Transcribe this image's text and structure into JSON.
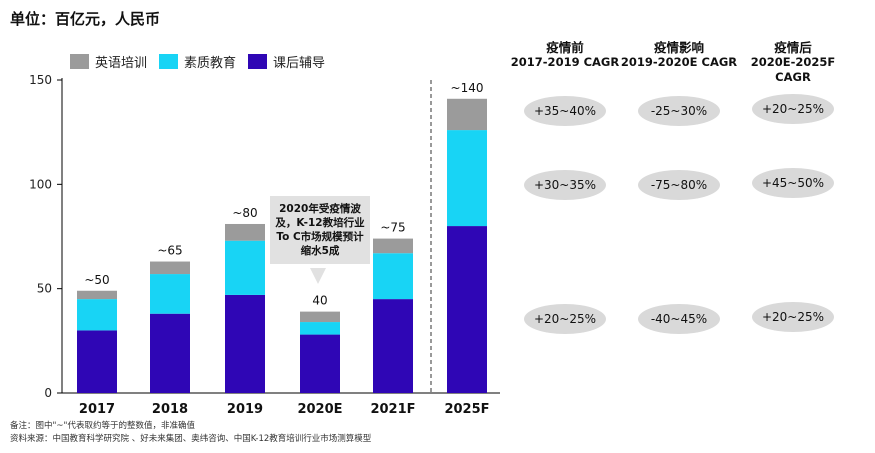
{
  "unit_title": "单位：百亿元，人民币",
  "colors": {
    "english": "#9b9b9b",
    "quality": "#18d4f5",
    "afterschool": "#2f06b5",
    "pill": "#d9d9d9"
  },
  "chart_data": {
    "type": "bar",
    "stacked": true,
    "categories": [
      "2017",
      "2018",
      "2019",
      "2020E",
      "2021F",
      "2025F"
    ],
    "series": [
      {
        "name": "课后辅导",
        "values": [
          30,
          38,
          47,
          28,
          45,
          80
        ]
      },
      {
        "name": "素质教育",
        "values": [
          15,
          19,
          26,
          6,
          22,
          46
        ]
      },
      {
        "name": "英语培训",
        "values": [
          4,
          6,
          8,
          5,
          7,
          15
        ]
      }
    ],
    "legend_order": [
      "英语培训",
      "素质教育",
      "课后辅导"
    ],
    "totals": [
      "~50",
      "~65",
      "~80",
      "40",
      "~75",
      "~140"
    ],
    "ylim": [
      0,
      150
    ],
    "yticks": [
      0,
      50,
      100,
      150
    ],
    "xlabel": "",
    "ylabel": ""
  },
  "callout": "2020年受疫情波及，K-12教培行业To C市场规模预计缩水5成",
  "cagr": {
    "columns": [
      {
        "title": "疫情前",
        "subtitle": "2017-2019 CAGR",
        "values": [
          "+35~40%",
          "+30~35%",
          "+20~25%"
        ]
      },
      {
        "title": "疫情影响",
        "subtitle": "2019-2020E CAGR",
        "values": [
          "-25~30%",
          "-75~80%",
          "-40~45%"
        ]
      },
      {
        "title": "疫情后",
        "subtitle": "2020E-2025F CAGR",
        "values": [
          "+20~25%",
          "+45~50%",
          "+20~25%"
        ]
      }
    ]
  },
  "notes": {
    "line1": "备注：图中\"~\"代表取约等于的整数值，非准确值",
    "line2": "资料来源：中国教育科学研究院 、好未来集团、奥纬咨询、中国K-12教育培训行业市场测算模型"
  }
}
